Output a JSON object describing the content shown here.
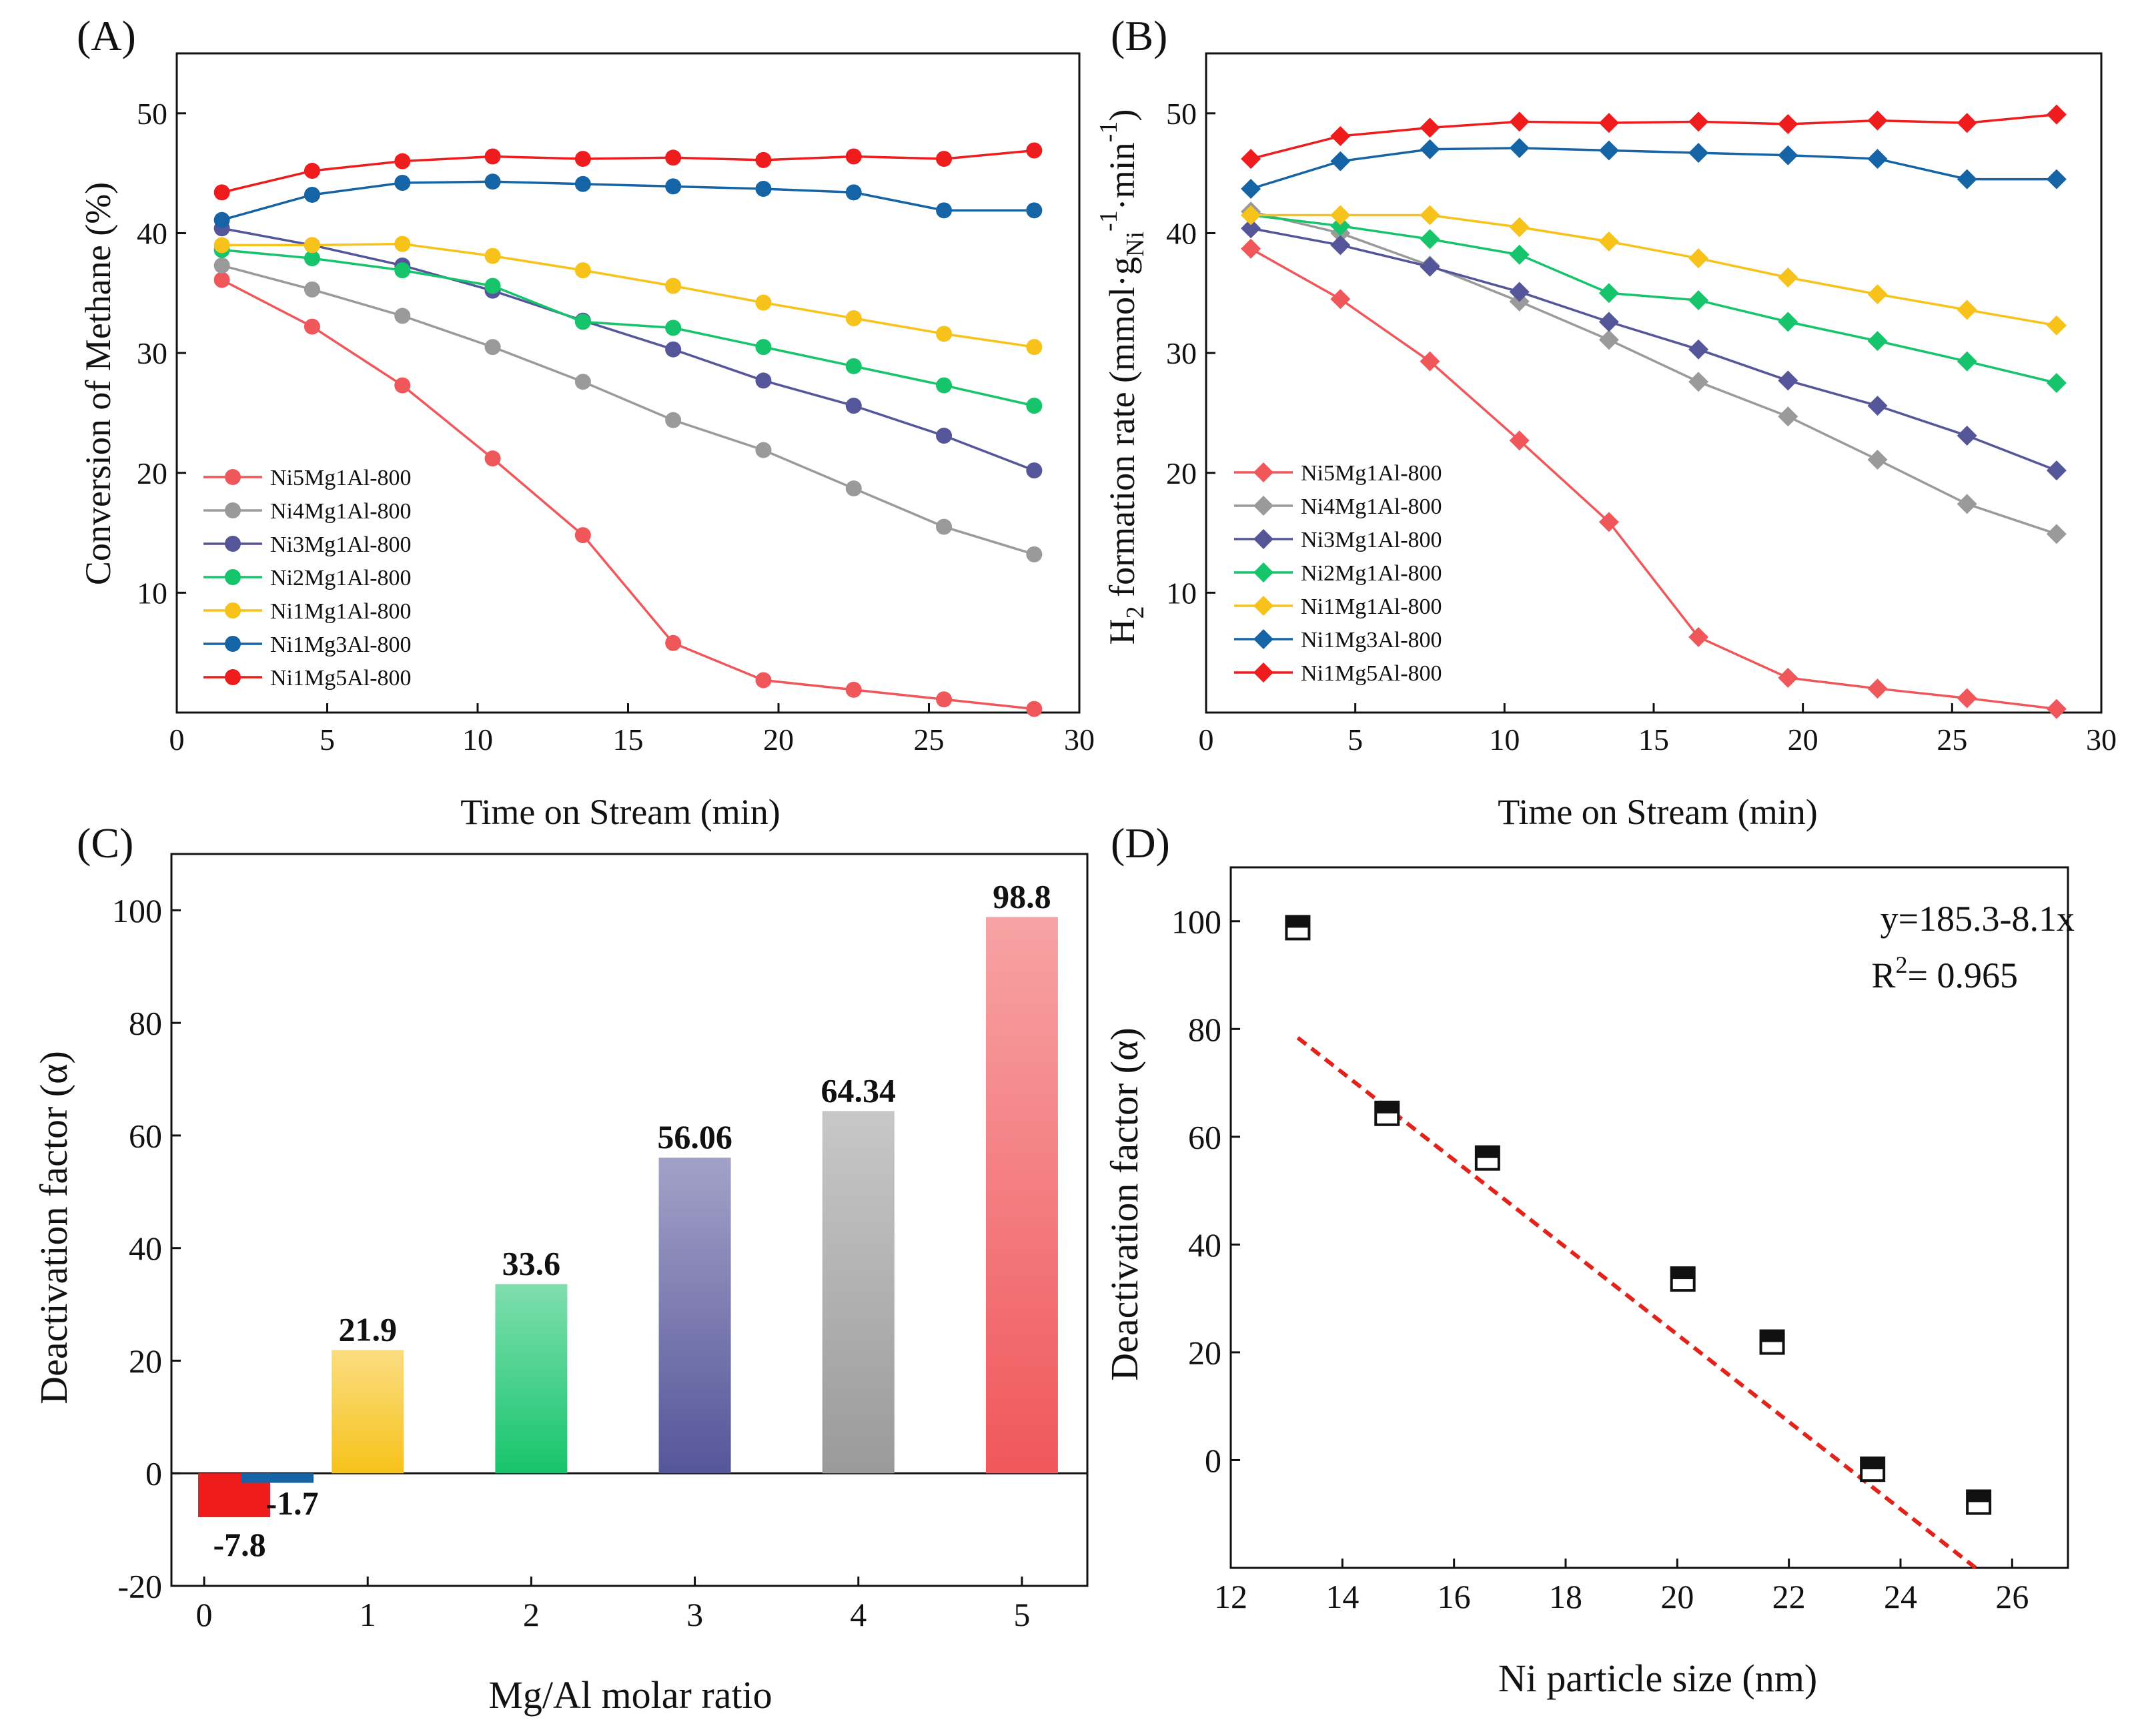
{
  "colors": {
    "Ni5Mg1Al-800": "#f0575b",
    "Ni4Mg1Al-800": "#9a9a9a",
    "Ni3Mg1Al-800": "#55559a",
    "Ni2Mg1Al-800": "#16c46c",
    "Ni1Mg1Al-800": "#f7c21a",
    "Ni1Mg3Al-800": "#1564a6",
    "Ni1Mg5Al-800": "#ee1c1c",
    "axis": "#111111",
    "fit_line": "#e2231a"
  },
  "chart_data": [
    {
      "panel": "(A)",
      "type": "line",
      "marker": "circle",
      "xlabel": "Time on Stream (min)",
      "ylabel": "Conversion of Methane (%)",
      "xlim": [
        0,
        30
      ],
      "ylim": [
        0,
        55
      ],
      "xticks": [
        0,
        5,
        10,
        15,
        20,
        25,
        30
      ],
      "yticks": [
        10,
        20,
        30,
        40,
        50
      ],
      "legend_position": "bottom-left",
      "x": [
        1.5,
        4.5,
        7.5,
        10.5,
        13.5,
        16.5,
        19.5,
        22.5,
        25.5,
        28.5
      ],
      "series": [
        {
          "name": "Ni5Mg1Al-800",
          "values": [
            36.1,
            32.2,
            27.3,
            21.2,
            14.8,
            5.8,
            2.7,
            1.9,
            1.1,
            0.3
          ]
        },
        {
          "name": "Ni4Mg1Al-800",
          "values": [
            37.3,
            35.3,
            33.1,
            30.5,
            27.6,
            24.4,
            21.9,
            18.7,
            15.5,
            13.2
          ]
        },
        {
          "name": "Ni3Mg1Al-800",
          "values": [
            40.4,
            39.0,
            37.3,
            35.2,
            32.7,
            30.3,
            27.7,
            25.6,
            23.1,
            20.2
          ]
        },
        {
          "name": "Ni2Mg1Al-800",
          "values": [
            38.6,
            37.9,
            36.9,
            35.6,
            32.6,
            32.1,
            30.5,
            28.9,
            27.3,
            25.6
          ]
        },
        {
          "name": "Ni1Mg1Al-800",
          "values": [
            39.0,
            39.0,
            39.1,
            38.1,
            36.9,
            35.6,
            34.2,
            32.9,
            31.6,
            30.5
          ]
        },
        {
          "name": "Ni1Mg3Al-800",
          "values": [
            41.1,
            43.2,
            44.2,
            44.3,
            44.1,
            43.9,
            43.7,
            43.4,
            41.9,
            41.9
          ]
        },
        {
          "name": "Ni1Mg5Al-800",
          "values": [
            43.4,
            45.2,
            46.0,
            46.4,
            46.2,
            46.3,
            46.1,
            46.4,
            46.2,
            46.9
          ]
        }
      ]
    },
    {
      "panel": "(B)",
      "type": "line",
      "marker": "diamond",
      "xlabel": "Time on Stream (min)",
      "ylabel_parts": [
        "H",
        "2",
        " formation rate (mmol·g",
        "Ni",
        "-1",
        "·min",
        "-1",
        ")"
      ],
      "xlim": [
        0,
        30
      ],
      "ylim": [
        0,
        55
      ],
      "xticks": [
        0,
        5,
        10,
        15,
        20,
        25,
        30
      ],
      "yticks": [
        10,
        20,
        30,
        40,
        50
      ],
      "legend_position": "bottom-left",
      "x": [
        1.5,
        4.5,
        7.5,
        10.5,
        13.5,
        16.5,
        19.5,
        22.5,
        25.5,
        28.5
      ],
      "series": [
        {
          "name": "Ni5Mg1Al-800",
          "values": [
            38.7,
            34.5,
            29.3,
            22.7,
            15.9,
            6.3,
            2.9,
            2.0,
            1.2,
            0.3
          ]
        },
        {
          "name": "Ni4Mg1Al-800",
          "values": [
            41.8,
            40.0,
            37.3,
            34.3,
            31.1,
            27.6,
            24.7,
            21.1,
            17.4,
            14.9
          ]
        },
        {
          "name": "Ni3Mg1Al-800",
          "values": [
            40.4,
            39.0,
            37.2,
            35.1,
            32.6,
            30.3,
            27.7,
            25.6,
            23.1,
            20.2
          ]
        },
        {
          "name": "Ni2Mg1Al-800",
          "values": [
            41.5,
            40.6,
            39.5,
            38.2,
            35.0,
            34.4,
            32.6,
            31.0,
            29.3,
            27.5
          ]
        },
        {
          "name": "Ni1Mg1Al-800",
          "values": [
            41.5,
            41.5,
            41.5,
            40.5,
            39.3,
            37.9,
            36.3,
            34.9,
            33.6,
            32.3
          ]
        },
        {
          "name": "Ni1Mg3Al-800",
          "values": [
            43.7,
            46.0,
            47.0,
            47.1,
            46.9,
            46.7,
            46.5,
            46.2,
            44.5,
            44.5
          ]
        },
        {
          "name": "Ni1Mg5Al-800",
          "values": [
            46.2,
            48.1,
            48.8,
            49.3,
            49.2,
            49.3,
            49.1,
            49.4,
            49.2,
            49.9
          ]
        }
      ]
    },
    {
      "panel": "(C)",
      "type": "bar",
      "xlabel": "Mg/Al molar ratio",
      "ylabel": "Deactivation factor (α)",
      "xlim": [
        -0.2,
        5.4
      ],
      "ylim": [
        -20,
        110
      ],
      "xticks": [
        0,
        1,
        2,
        3,
        4,
        5
      ],
      "yticks": [
        -20,
        0,
        20,
        40,
        60,
        80,
        100
      ],
      "bars": [
        {
          "x": 0.0,
          "value": -7.8,
          "label": "-7.8",
          "color": "#ee1c1c"
        },
        {
          "x": 0.2,
          "value": -1.7,
          "label": "-1.7",
          "color": "#1564a6"
        },
        {
          "x": 1.0,
          "value": 21.9,
          "label": "21.9",
          "color": "#f7c21a"
        },
        {
          "x": 2.0,
          "value": 33.6,
          "label": "33.6",
          "color": "#16c46c"
        },
        {
          "x": 3.0,
          "value": 56.06,
          "label": "56.06",
          "color": "#55559a"
        },
        {
          "x": 4.0,
          "value": 64.34,
          "label": "64.34",
          "color": "#9a9a9a"
        },
        {
          "x": 5.0,
          "value": 98.8,
          "label": "98.8",
          "color": "#f0575b"
        }
      ]
    },
    {
      "panel": "(D)",
      "type": "scatter",
      "marker": "half-filled square",
      "xlabel": "Ni particle size (nm)",
      "ylabel": "Deactivation factor (α)",
      "xlim": [
        12,
        27
      ],
      "ylim": [
        -20,
        110
      ],
      "xticks": [
        12,
        14,
        16,
        18,
        20,
        22,
        24,
        26
      ],
      "yticks": [
        0,
        20,
        40,
        60,
        80,
        100
      ],
      "points": [
        {
          "x": 13.2,
          "y": 98.8
        },
        {
          "x": 14.8,
          "y": 64.34
        },
        {
          "x": 16.6,
          "y": 56.06
        },
        {
          "x": 20.1,
          "y": 33.6
        },
        {
          "x": 21.7,
          "y": 21.9
        },
        {
          "x": 23.5,
          "y": -1.7
        },
        {
          "x": 25.4,
          "y": -7.8
        }
      ],
      "fit": {
        "intercept": 185.3,
        "slope": -8.1,
        "x_range": [
          13.2,
          25.4
        ],
        "style": "dashed"
      },
      "equation_text": "y=185.3-8.1x",
      "r2_label": "R",
      "r2_sup": "2",
      "r2_value": "= 0.965"
    }
  ]
}
